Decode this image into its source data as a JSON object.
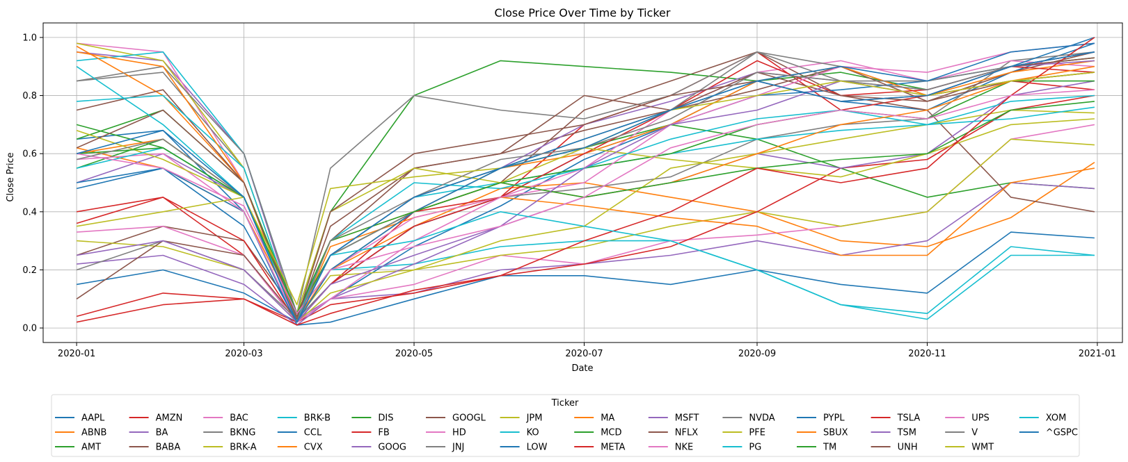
{
  "chart_data": {
    "type": "line",
    "title": "Close Price Over Time by Ticker",
    "xlabel": "Date",
    "ylabel": "Close Price",
    "xlim": [
      "2019-12-20",
      "2021-01-10"
    ],
    "ylim": [
      -0.05,
      1.05
    ],
    "x_ticks": [
      "2020-01",
      "2020-03",
      "2020-05",
      "2020-07",
      "2020-09",
      "2020-11",
      "2021-01"
    ],
    "y_ticks": [
      "0.0",
      "0.2",
      "0.4",
      "0.6",
      "0.8",
      "1.0"
    ],
    "grid": true,
    "legend": {
      "title": "Ticker",
      "placement": "bottom-center",
      "columns": 14
    },
    "data_note": "Values read at monthly points from dense daily series (min-max normalized close prices).",
    "dates": [
      "2020-01-01",
      "2020-02-01",
      "2020-03-01",
      "2020-03-20",
      "2020-04-01",
      "2020-05-01",
      "2020-06-01",
      "2020-07-01",
      "2020-08-01",
      "2020-09-01",
      "2020-10-01",
      "2020-11-01",
      "2020-12-01",
      "2020-12-31"
    ],
    "series": [
      {
        "name": "AAPL",
        "color": "#1f77b4",
        "values": [
          0.15,
          0.2,
          0.12,
          0.02,
          0.1,
          0.28,
          0.42,
          0.58,
          0.7,
          0.85,
          0.78,
          0.75,
          0.88,
          0.98
        ]
      },
      {
        "name": "ABNB",
        "color": "#ff7f0e",
        "values": [
          0.62,
          0.55,
          0.4,
          0.05,
          0.2,
          0.35,
          0.48,
          0.5,
          0.45,
          0.4,
          0.3,
          0.28,
          0.38,
          0.57
        ]
      },
      {
        "name": "AMT",
        "color": "#2ca02c",
        "values": [
          0.55,
          0.65,
          0.45,
          0.05,
          0.25,
          0.45,
          0.55,
          0.62,
          0.7,
          0.65,
          0.55,
          0.45,
          0.5,
          0.48
        ]
      },
      {
        "name": "AMZN",
        "color": "#d62728",
        "values": [
          0.36,
          0.45,
          0.25,
          0.02,
          0.15,
          0.4,
          0.45,
          0.7,
          0.8,
          0.95,
          0.75,
          0.8,
          0.85,
          0.82
        ]
      },
      {
        "name": "BA",
        "color": "#9467bd",
        "values": [
          0.95,
          0.92,
          0.6,
          0.03,
          0.1,
          0.12,
          0.2,
          0.22,
          0.25,
          0.3,
          0.25,
          0.3,
          0.5,
          0.48
        ]
      },
      {
        "name": "BABA",
        "color": "#8c564b",
        "values": [
          0.25,
          0.35,
          0.3,
          0.05,
          0.25,
          0.4,
          0.5,
          0.75,
          0.85,
          0.95,
          0.8,
          0.75,
          0.45,
          0.4
        ]
      },
      {
        "name": "BAC",
        "color": "#e377c2",
        "values": [
          0.98,
          0.95,
          0.5,
          0.02,
          0.1,
          0.15,
          0.25,
          0.22,
          0.3,
          0.32,
          0.35,
          0.4,
          0.65,
          0.7
        ]
      },
      {
        "name": "BKNG",
        "color": "#7f7f7f",
        "values": [
          0.85,
          0.88,
          0.55,
          0.03,
          0.15,
          0.35,
          0.45,
          0.48,
          0.52,
          0.65,
          0.7,
          0.72,
          0.92,
          0.95
        ]
      },
      {
        "name": "BRK-A",
        "color": "#bcbd22",
        "values": [
          0.98,
          0.92,
          0.55,
          0.03,
          0.18,
          0.2,
          0.25,
          0.28,
          0.35,
          0.4,
          0.35,
          0.4,
          0.65,
          0.63
        ]
      },
      {
        "name": "BRK-B",
        "color": "#17becf",
        "values": [
          0.92,
          0.95,
          0.6,
          0.05,
          0.2,
          0.22,
          0.28,
          0.3,
          0.3,
          0.2,
          0.08,
          0.05,
          0.28,
          0.25
        ]
      },
      {
        "name": "CCL",
        "color": "#1f77b4",
        "values": [
          0.65,
          0.68,
          0.4,
          0.01,
          0.02,
          0.1,
          0.18,
          0.18,
          0.15,
          0.2,
          0.15,
          0.12,
          0.33,
          0.31
        ]
      },
      {
        "name": "CVX",
        "color": "#ff7f0e",
        "values": [
          0.97,
          0.8,
          0.5,
          0.02,
          0.28,
          0.38,
          0.45,
          0.42,
          0.38,
          0.35,
          0.25,
          0.25,
          0.5,
          0.55
        ]
      },
      {
        "name": "DIS",
        "color": "#2ca02c",
        "values": [
          0.7,
          0.62,
          0.45,
          0.05,
          0.4,
          0.8,
          0.92,
          0.9,
          0.88,
          0.85,
          0.88,
          0.82,
          0.9,
          0.93
        ]
      },
      {
        "name": "FB",
        "color": "#d62728",
        "values": [
          0.02,
          0.08,
          0.1,
          0.02,
          0.08,
          0.12,
          0.18,
          0.22,
          0.28,
          0.4,
          0.55,
          0.58,
          0.75,
          0.8
        ]
      },
      {
        "name": "GOOG",
        "color": "#9467bd",
        "values": [
          0.22,
          0.25,
          0.15,
          0.01,
          0.1,
          0.22,
          0.35,
          0.45,
          0.5,
          0.6,
          0.55,
          0.6,
          0.8,
          0.85
        ]
      },
      {
        "name": "GOOGL",
        "color": "#8c564b",
        "values": [
          0.75,
          0.82,
          0.5,
          0.04,
          0.3,
          0.55,
          0.6,
          0.68,
          0.75,
          0.82,
          0.9,
          0.78,
          0.88,
          0.95
        ]
      },
      {
        "name": "HD",
        "color": "#e377c2",
        "values": [
          0.33,
          0.35,
          0.25,
          0.02,
          0.2,
          0.38,
          0.45,
          0.55,
          0.75,
          0.88,
          0.92,
          0.85,
          0.92,
          0.9
        ]
      },
      {
        "name": "JNJ",
        "color": "#7f7f7f",
        "values": [
          0.85,
          0.9,
          0.6,
          0.05,
          0.55,
          0.8,
          0.75,
          0.72,
          0.8,
          0.95,
          0.9,
          0.8,
          0.85,
          0.88
        ]
      },
      {
        "name": "JPM",
        "color": "#bcbd22",
        "values": [
          0.3,
          0.28,
          0.2,
          0.02,
          0.12,
          0.2,
          0.3,
          0.35,
          0.55,
          0.6,
          0.65,
          0.7,
          0.75,
          0.74
        ]
      },
      {
        "name": "KO",
        "color": "#17becf",
        "values": [
          0.78,
          0.8,
          0.55,
          0.03,
          0.25,
          0.45,
          0.5,
          0.55,
          0.6,
          0.65,
          0.68,
          0.7,
          0.72,
          0.76
        ]
      },
      {
        "name": "LOW",
        "color": "#1f77b4",
        "values": [
          0.48,
          0.55,
          0.4,
          0.02,
          0.15,
          0.35,
          0.45,
          0.6,
          0.7,
          0.8,
          0.82,
          0.85,
          0.9,
          1.0
        ]
      },
      {
        "name": "MA",
        "color": "#ff7f0e",
        "values": [
          0.6,
          0.65,
          0.45,
          0.03,
          0.2,
          0.4,
          0.55,
          0.6,
          0.7,
          0.85,
          0.9,
          0.8,
          0.88,
          0.92
        ]
      },
      {
        "name": "MCD",
        "color": "#2ca02c",
        "values": [
          0.65,
          0.75,
          0.5,
          0.05,
          0.25,
          0.4,
          0.5,
          0.55,
          0.6,
          0.7,
          0.75,
          0.72,
          0.85,
          0.85
        ]
      },
      {
        "name": "META",
        "color": "#d62728",
        "values": [
          0.4,
          0.45,
          0.3,
          0.02,
          0.15,
          0.35,
          0.45,
          0.6,
          0.75,
          0.92,
          0.8,
          0.82,
          0.9,
          0.88
        ]
      },
      {
        "name": "MSFT",
        "color": "#9467bd",
        "values": [
          0.5,
          0.6,
          0.45,
          0.02,
          0.25,
          0.45,
          0.55,
          0.7,
          0.78,
          0.88,
          0.85,
          0.82,
          0.9,
          0.92
        ]
      },
      {
        "name": "NFLX",
        "color": "#8c564b",
        "values": [
          0.1,
          0.3,
          0.25,
          0.03,
          0.35,
          0.55,
          0.6,
          0.8,
          0.75,
          0.88,
          0.8,
          0.78,
          0.85,
          0.88
        ]
      },
      {
        "name": "NKE",
        "color": "#e377c2",
        "values": [
          0.58,
          0.6,
          0.4,
          0.02,
          0.1,
          0.3,
          0.45,
          0.5,
          0.7,
          0.8,
          0.9,
          0.88,
          0.95,
          0.98
        ]
      },
      {
        "name": "NVDA",
        "color": "#7f7f7f",
        "values": [
          0.2,
          0.3,
          0.2,
          0.03,
          0.25,
          0.4,
          0.55,
          0.65,
          0.75,
          0.95,
          0.85,
          0.85,
          0.9,
          0.95
        ]
      },
      {
        "name": "PFE",
        "color": "#bcbd22",
        "values": [
          0.68,
          0.58,
          0.45,
          0.05,
          0.4,
          0.55,
          0.5,
          0.62,
          0.58,
          0.55,
          0.52,
          0.6,
          0.7,
          0.72
        ]
      },
      {
        "name": "PG",
        "color": "#17becf",
        "values": [
          0.55,
          0.62,
          0.45,
          0.03,
          0.3,
          0.5,
          0.48,
          0.55,
          0.65,
          0.72,
          0.75,
          0.7,
          0.78,
          0.8
        ]
      },
      {
        "name": "PYPL",
        "color": "#1f77b4",
        "values": [
          0.5,
          0.55,
          0.35,
          0.02,
          0.2,
          0.4,
          0.55,
          0.65,
          0.75,
          0.85,
          0.9,
          0.85,
          0.95,
          0.98
        ]
      },
      {
        "name": "SBUX",
        "color": "#ff7f0e",
        "values": [
          0.95,
          0.9,
          0.5,
          0.02,
          0.3,
          0.4,
          0.5,
          0.45,
          0.5,
          0.6,
          0.7,
          0.75,
          0.85,
          0.9
        ]
      },
      {
        "name": "TM",
        "color": "#2ca02c",
        "values": [
          0.6,
          0.62,
          0.45,
          0.05,
          0.3,
          0.4,
          0.5,
          0.45,
          0.5,
          0.55,
          0.58,
          0.6,
          0.75,
          0.78
        ]
      },
      {
        "name": "TSLA",
        "color": "#d62728",
        "values": [
          0.04,
          0.12,
          0.1,
          0.01,
          0.05,
          0.13,
          0.18,
          0.3,
          0.4,
          0.55,
          0.5,
          0.55,
          0.8,
          1.0
        ]
      },
      {
        "name": "TSM",
        "color": "#9467bd",
        "values": [
          0.25,
          0.3,
          0.2,
          0.02,
          0.15,
          0.25,
          0.35,
          0.55,
          0.7,
          0.75,
          0.85,
          0.8,
          0.9,
          0.95
        ]
      },
      {
        "name": "UNH",
        "color": "#8c564b",
        "values": [
          0.62,
          0.75,
          0.5,
          0.03,
          0.4,
          0.6,
          0.65,
          0.7,
          0.8,
          0.85,
          0.78,
          0.8,
          0.9,
          0.93
        ]
      },
      {
        "name": "UPS",
        "color": "#e377c2",
        "values": [
          0.6,
          0.55,
          0.42,
          0.05,
          0.2,
          0.28,
          0.35,
          0.45,
          0.62,
          0.7,
          0.75,
          0.72,
          0.8,
          0.82
        ]
      },
      {
        "name": "V",
        "color": "#7f7f7f",
        "values": [
          0.58,
          0.65,
          0.45,
          0.02,
          0.3,
          0.45,
          0.58,
          0.62,
          0.72,
          0.88,
          0.85,
          0.82,
          0.9,
          0.95
        ]
      },
      {
        "name": "WMT",
        "color": "#bcbd22",
        "values": [
          0.35,
          0.4,
          0.45,
          0.08,
          0.48,
          0.52,
          0.55,
          0.62,
          0.75,
          0.8,
          0.85,
          0.8,
          0.85,
          0.88
        ]
      },
      {
        "name": "XOM",
        "color": "#17becf",
        "values": [
          0.9,
          0.7,
          0.45,
          0.02,
          0.25,
          0.3,
          0.4,
          0.35,
          0.3,
          0.2,
          0.08,
          0.03,
          0.25,
          0.25
        ]
      },
      {
        "name": "^GSPC",
        "color": "#1f77b4",
        "values": [
          0.6,
          0.68,
          0.45,
          0.02,
          0.25,
          0.45,
          0.55,
          0.62,
          0.75,
          0.85,
          0.78,
          0.8,
          0.9,
          0.95
        ]
      }
    ]
  }
}
